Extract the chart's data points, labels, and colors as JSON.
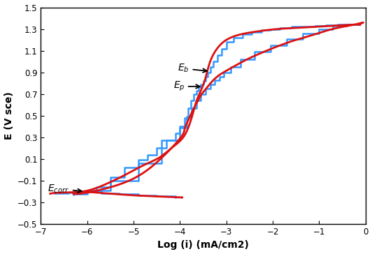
{
  "xlabel": "Log (i) (mA/cm2)",
  "ylabel": "E (V sce)",
  "xlim": [
    -7,
    0
  ],
  "ylim": [
    -0.5,
    1.5
  ],
  "xticks": [
    -7,
    -6,
    -5,
    -4,
    -3,
    -2,
    -1,
    0
  ],
  "yticks": [
    -0.5,
    -0.3,
    -0.1,
    0.1,
    0.3,
    0.5,
    0.7,
    0.9,
    1.1,
    1.3,
    1.5
  ],
  "red_color": "#dd1111",
  "blue_color": "#3399ff",
  "bg_color": "#ffffff",
  "label_fontsize": 10,
  "tick_fontsize": 8.5,
  "annotation_fontsize": 10,
  "red_lw": 2.0,
  "blue_lw": 1.8
}
